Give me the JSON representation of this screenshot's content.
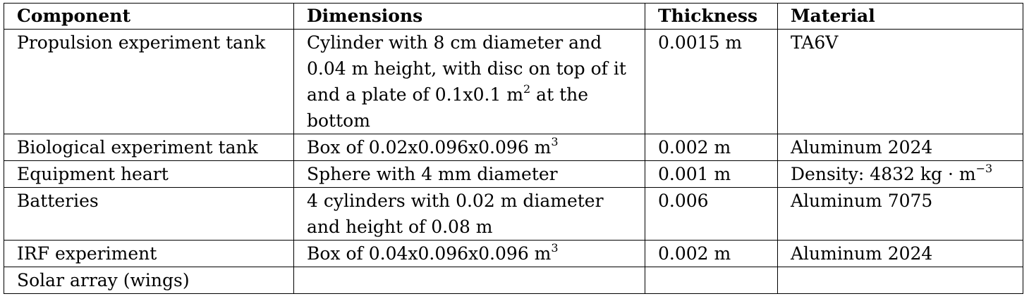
{
  "table": {
    "headers": [
      "Component",
      "Dimensions",
      "Thickness",
      "Material"
    ],
    "rows": [
      {
        "component": "Propulsion experiment tank",
        "dimensions_main": "Cylinder with 8 cm diameter and 0.04 m height, with disc on top of it and a plate of 0.1x0.1 m",
        "dimensions_sup": "2",
        "dimensions_tail": " at the bottom",
        "thickness": "0.0015 m",
        "material": "TA6V"
      },
      {
        "component": "Biological experiment tank",
        "dimensions_main": "Box of 0.02x0.096x0.096 m",
        "dimensions_sup": "3",
        "thickness": "0.002 m",
        "material": "Aluminum 2024"
      },
      {
        "component": "Equipment heart",
        "dimensions_main": "Sphere with 4 mm diameter",
        "thickness": "0.001 m",
        "material_main": "Density: 4832 kg · m",
        "material_sup": "−3"
      },
      {
        "component": "Batteries",
        "dimensions_main": "4 cylinders with 0.02 m diameter and height of 0.08 m",
        "thickness": "0.006",
        "material": "Aluminum 7075"
      },
      {
        "component": "IRF experiment",
        "dimensions_main": "Box of 0.04x0.096x0.096 m",
        "dimensions_sup": "3",
        "thickness": "0.002 m",
        "material": "Aluminum 2024"
      },
      {
        "component": "Solar array (wings)",
        "dimensions_main": "",
        "thickness": "",
        "material": ""
      }
    ]
  }
}
